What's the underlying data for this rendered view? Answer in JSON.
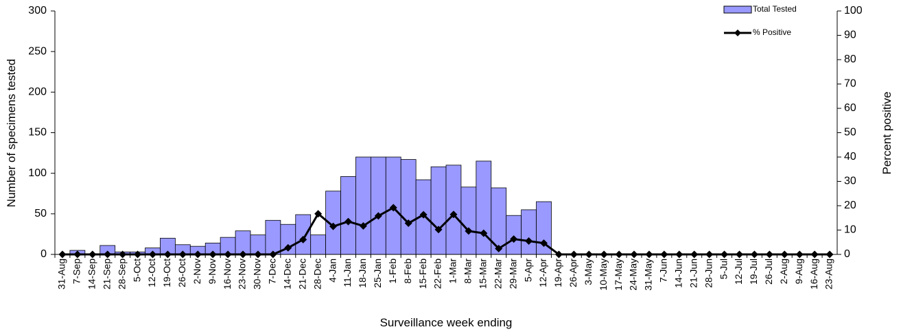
{
  "chart_data": {
    "type": "bar",
    "categories": [
      "31-Aug",
      "7-Sep",
      "14-Sep",
      "21-Sep",
      "28-Sep",
      "5-Oct",
      "12-Oct",
      "19-Oct",
      "26-Oct",
      "2-Nov",
      "9-Nov",
      "16-Nov",
      "23-Nov",
      "30-Nov",
      "7-Dec",
      "14-Dec",
      "21-Dec",
      "28-Dec",
      "4-Jan",
      "11-Jan",
      "18-Jan",
      "25-Jan",
      "1-Feb",
      "8-Feb",
      "15-Feb",
      "22-Feb",
      "1-Mar",
      "8-Mar",
      "15-Mar",
      "22-Mar",
      "29-Mar",
      "5-Apr",
      "12-Apr",
      "19-Apr",
      "26-Apr",
      "3-May",
      "10-May",
      "17-May",
      "24-May",
      "31-May",
      "7-Jun",
      "14-Jun",
      "21-Jun",
      "28-Jun",
      "5-Jul",
      "12-Jul",
      "19-Jul",
      "26-Jul",
      "2-Aug",
      "9-Aug",
      "16-Aug",
      "23-Aug"
    ],
    "series": [
      {
        "name": "Total Tested",
        "type": "bar",
        "color": "#9999ff",
        "values": [
          0,
          5,
          0,
          11,
          3,
          3,
          8,
          20,
          12,
          10,
          14,
          21,
          29,
          24,
          42,
          37,
          49,
          24,
          78,
          96,
          120,
          120,
          120,
          117,
          92,
          108,
          110,
          83,
          115,
          82,
          48,
          55,
          65,
          0,
          0,
          0,
          0,
          0,
          0,
          0,
          0,
          0,
          0,
          0,
          0,
          0,
          0,
          0,
          0,
          0,
          0,
          0
        ]
      },
      {
        "name": "% Positive",
        "type": "line",
        "axis": "y2",
        "color": "#000000",
        "values": [
          0,
          0,
          0,
          0,
          0,
          0,
          0,
          0,
          0,
          0,
          0,
          0,
          0,
          0,
          0,
          2.7,
          6.1,
          16.7,
          11.5,
          13.5,
          11.7,
          15.8,
          19.2,
          12.8,
          16.3,
          10.2,
          16.4,
          9.6,
          8.7,
          2.4,
          6.3,
          5.5,
          4.6,
          0,
          0,
          0,
          0,
          0,
          0,
          0,
          0,
          0,
          0,
          0,
          0,
          0,
          0,
          0,
          0,
          0,
          0,
          0
        ]
      }
    ],
    "ylabel": "Number of specimens tested",
    "y2label": "Percent positive",
    "xlabel": "Surveillance week ending",
    "ylim": [
      0,
      300
    ],
    "yticks": [
      0,
      50,
      100,
      150,
      200,
      250,
      300
    ],
    "y2lim": [
      0,
      100
    ],
    "y2ticks": [
      0,
      10,
      20,
      30,
      40,
      50,
      60,
      70,
      80,
      90,
      100
    ],
    "legend": "top-right",
    "grid": false
  }
}
